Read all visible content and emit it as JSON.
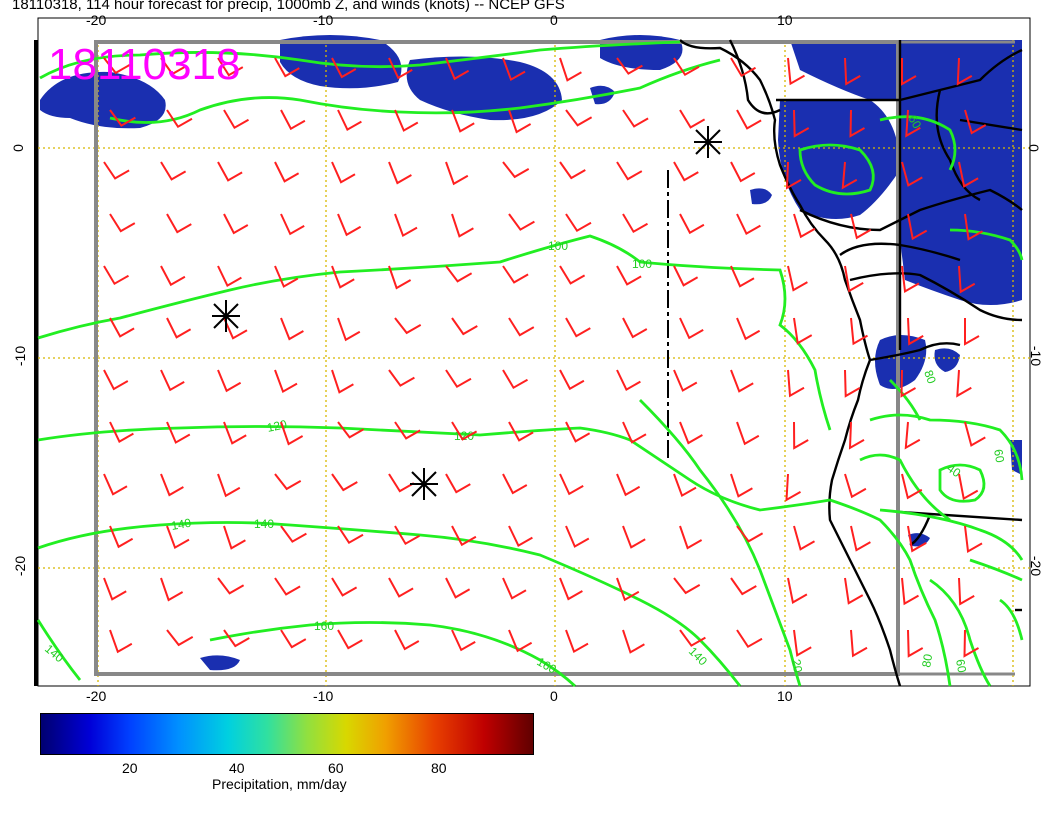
{
  "title": "18110318, 114 hour forecast for precip, 1000mb Z, and winds (knots) -- NCEP GFS",
  "stamp": "18110318",
  "top_ticks": [
    "-20",
    "-10",
    "0",
    "10"
  ],
  "bottom_ticks": [
    "-20",
    "-10",
    "0",
    "10"
  ],
  "left_ticks": [
    "0",
    "-10",
    "-20"
  ],
  "right_ticks": [
    "0",
    "-10",
    "-20"
  ],
  "contour_labels": [
    "100",
    "100",
    "120",
    "120",
    "140",
    "140",
    "140",
    "160",
    "160",
    "140",
    "20",
    "80",
    "40",
    "60",
    "80",
    "60",
    "60"
  ],
  "colorbar": {
    "labels": [
      "20",
      "40",
      "60",
      "80"
    ],
    "title": "Precipitation, mm/day"
  },
  "colors": {
    "contour": "#22ee22",
    "wind": "#ff2020",
    "precip": "#1a2fb0",
    "grid": "#d8b800",
    "stamp": "#ff00ff"
  }
}
